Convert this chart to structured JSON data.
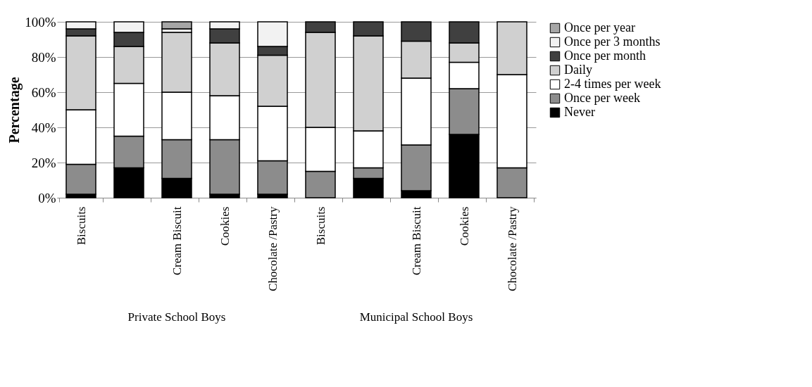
{
  "chart_data": {
    "type": "bar",
    "stacked": true,
    "ylabel": "Percentage",
    "categories": [
      "Biscuits",
      null,
      "Cream Biscuit",
      "Cookies",
      "Chocolate /Pastry",
      "Biscuits",
      null,
      "Cream Biscuit",
      "Cookies",
      "Chocolate /Pastry"
    ],
    "series": [
      {
        "name": "Never",
        "color": "#000000",
        "values": [
          2,
          17,
          11,
          2,
          2,
          0,
          11,
          4,
          36,
          0
        ]
      },
      {
        "name": "Once per week",
        "color": "#8c8c8c",
        "values": [
          17,
          18,
          22,
          31,
          19,
          15,
          6,
          26,
          26,
          17
        ]
      },
      {
        "name": "2-4 times per week",
        "color": "#ffffff",
        "values": [
          31,
          30,
          27,
          25,
          31,
          25,
          21,
          38,
          15,
          53
        ]
      },
      {
        "name": "Daily",
        "color": "#d0d0d0",
        "values": [
          42,
          21,
          34,
          30,
          29,
          54,
          54,
          21,
          11,
          30
        ]
      },
      {
        "name": "Once per month",
        "color": "#404040",
        "values": [
          4,
          8,
          0,
          8,
          5,
          6,
          8,
          11,
          12,
          0
        ]
      },
      {
        "name": "Once per 3 months",
        "color": "#f2f2f2",
        "values": [
          4,
          6,
          2,
          4,
          14,
          0,
          0,
          0,
          0,
          0
        ]
      },
      {
        "name": "Once per year",
        "color": "#a6a6a6",
        "values": [
          0,
          0,
          4,
          0,
          0,
          0,
          0,
          0,
          0,
          0
        ]
      }
    ],
    "ylim": [
      0,
      100
    ],
    "yticks": [
      {
        "value": 0,
        "label": "0%"
      },
      {
        "value": 20,
        "label": "20%"
      },
      {
        "value": 40,
        "label": "40%"
      },
      {
        "value": 60,
        "label": "60%"
      },
      {
        "value": 80,
        "label": "80%"
      },
      {
        "value": 100,
        "label": "100%"
      }
    ],
    "grid": "y",
    "legend": "right",
    "annotations": [
      "Private School Boys",
      "Municipal School Boys"
    ]
  }
}
